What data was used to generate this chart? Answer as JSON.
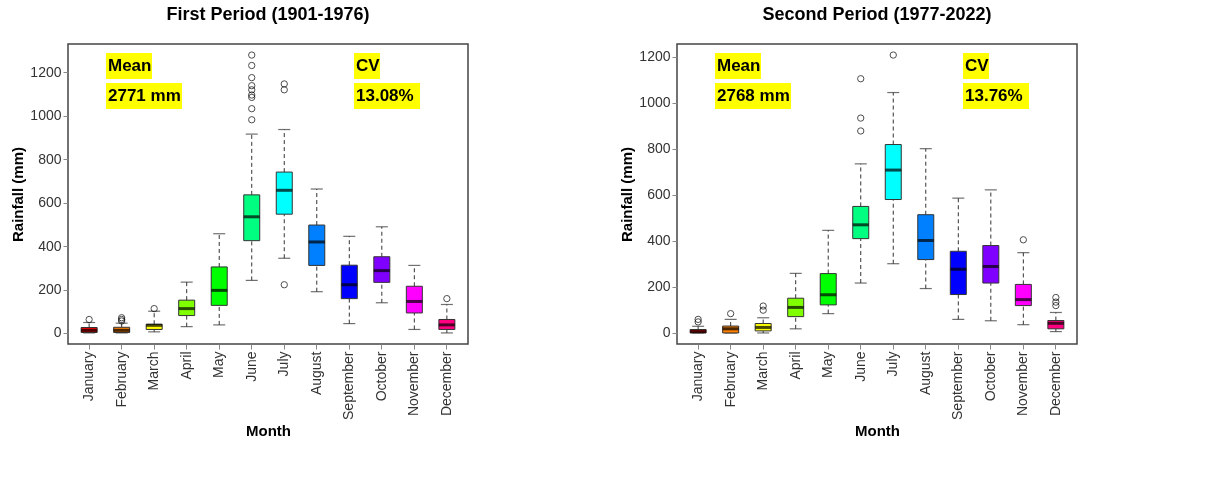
{
  "chart_data": [
    {
      "type": "box",
      "title": "First Period (1901-1976)",
      "xlabel": "Month",
      "ylabel": "Rainfall (mm)",
      "categories": [
        "January",
        "February",
        "March",
        "April",
        "May",
        "June",
        "July",
        "August",
        "September",
        "October",
        "November",
        "December"
      ],
      "colors": [
        "#ff0000",
        "#ff8000",
        "#ffff00",
        "#80ff00",
        "#00ff00",
        "#00ff80",
        "#00ffff",
        "#0080ff",
        "#0000ff",
        "#8000ff",
        "#ff00ff",
        "#ff0080"
      ],
      "boxes": [
        {
          "low": 0,
          "q1": 2,
          "median": 12,
          "q3": 25,
          "high": 48,
          "outliers": [
            62
          ]
        },
        {
          "low": 0,
          "q1": 2,
          "median": 12,
          "q3": 26,
          "high": 45,
          "outliers": [
            55,
            62,
            70
          ]
        },
        {
          "low": 5,
          "q1": 16,
          "median": 35,
          "q3": 40,
          "high": 100,
          "outliers": [
            112
          ]
        },
        {
          "low": 29,
          "q1": 80,
          "median": 112,
          "q3": 151,
          "high": 234
        },
        {
          "low": 37,
          "q1": 127,
          "median": 196,
          "q3": 304,
          "high": 457
        },
        {
          "low": 242,
          "q1": 425,
          "median": 535,
          "q3": 636,
          "high": 916,
          "outliers": [
            982,
            1033,
            1085,
            1096,
            1120,
            1139,
            1176,
            1232,
            1280
          ]
        },
        {
          "low": 344,
          "q1": 547,
          "median": 657,
          "q3": 741,
          "high": 937,
          "outliers": [
            222,
            1120,
            1147
          ]
        },
        {
          "low": 190,
          "q1": 311,
          "median": 419,
          "q3": 497,
          "high": 663
        },
        {
          "low": 43,
          "q1": 158,
          "median": 222,
          "q3": 312,
          "high": 445
        },
        {
          "low": 139,
          "q1": 233,
          "median": 287,
          "q3": 351,
          "high": 489
        },
        {
          "low": 16,
          "q1": 92,
          "median": 145,
          "q3": 215,
          "high": 311
        },
        {
          "low": 0,
          "q1": 16,
          "median": 37,
          "q3": 62,
          "high": 131,
          "outliers": [
            158
          ]
        }
      ],
      "ylim": [
        -51,
        1331
      ],
      "yticks": [
        0,
        200,
        400,
        600,
        800,
        1000,
        1200
      ],
      "grid": false,
      "annotations": [
        "Mean",
        "2771 mm",
        "CV",
        "13.08%"
      ]
    },
    {
      "type": "box",
      "title": "Second Period (1977-2022)",
      "xlabel": "Month",
      "ylabel": "Rainfall (mm)",
      "categories": [
        "January",
        "February",
        "March",
        "April",
        "May",
        "June",
        "July",
        "August",
        "September",
        "October",
        "November",
        "December"
      ],
      "colors": [
        "#ff0000",
        "#ff8000",
        "#ffff00",
        "#80ff00",
        "#00ff00",
        "#00ff80",
        "#00ffff",
        "#0080ff",
        "#0000ff",
        "#8000ff",
        "#ff00ff",
        "#ff0080"
      ],
      "boxes": [
        {
          "low": 0,
          "q1": 0,
          "median": 6,
          "q3": 15,
          "high": 29,
          "outliers": [
            48,
            59
          ]
        },
        {
          "low": 0,
          "q1": 0,
          "median": 18,
          "q3": 30,
          "high": 59,
          "outliers": [
            84
          ]
        },
        {
          "low": 0,
          "q1": 9,
          "median": 24,
          "q3": 41,
          "high": 66,
          "outliers": [
            99,
            117
          ]
        },
        {
          "low": 18,
          "q1": 71,
          "median": 111,
          "q3": 151,
          "high": 259
        },
        {
          "low": 84,
          "q1": 122,
          "median": 166,
          "q3": 258,
          "high": 446
        },
        {
          "low": 217,
          "q1": 410,
          "median": 470,
          "q3": 550,
          "high": 735,
          "outliers": [
            878,
            934,
            1105
          ]
        },
        {
          "low": 301,
          "q1": 580,
          "median": 708,
          "q3": 819,
          "high": 1045,
          "outliers": [
            1208
          ]
        },
        {
          "low": 193,
          "q1": 319,
          "median": 402,
          "q3": 514,
          "high": 801
        },
        {
          "low": 59,
          "q1": 167,
          "median": 277,
          "q3": 355,
          "high": 586
        },
        {
          "low": 53,
          "q1": 217,
          "median": 289,
          "q3": 380,
          "high": 622
        },
        {
          "low": 36,
          "q1": 119,
          "median": 145,
          "q3": 211,
          "high": 349,
          "outliers": [
            405
          ]
        },
        {
          "low": 6,
          "q1": 18,
          "median": 42,
          "q3": 54,
          "high": 89,
          "outliers": [
            119,
            134,
            154
          ]
        }
      ],
      "ylim": [
        -48,
        1256
      ],
      "yticks": [
        0,
        200,
        400,
        600,
        800,
        1000,
        1200
      ],
      "grid": false,
      "annotations": [
        "Mean",
        "2768 mm",
        "CV",
        "13.76%"
      ]
    }
  ]
}
